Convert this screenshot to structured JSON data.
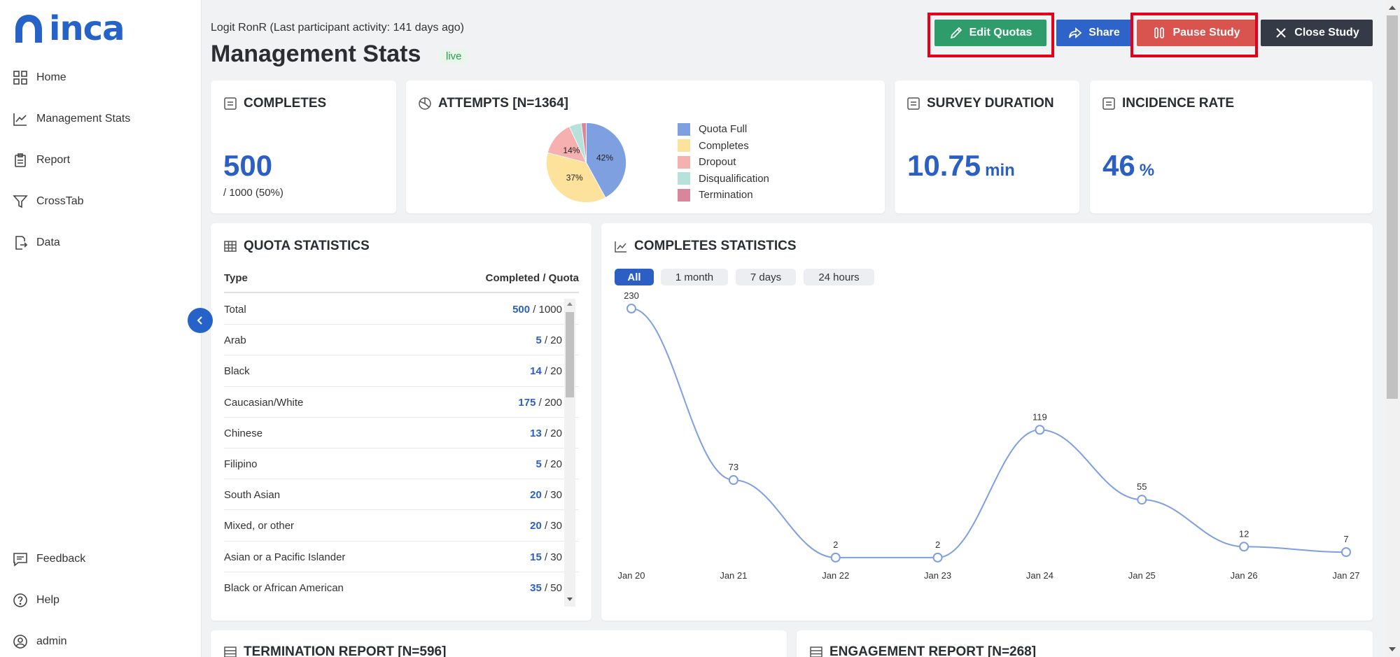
{
  "app": {
    "name": "inca"
  },
  "sidebar": {
    "items": [
      {
        "label": "Home",
        "icon": "grid-icon"
      },
      {
        "label": "Management Stats",
        "icon": "chart-line-icon"
      },
      {
        "label": "Report",
        "icon": "clipboard-icon"
      },
      {
        "label": "CrossTab",
        "icon": "filter-icon"
      },
      {
        "label": "Data",
        "icon": "file-export-icon"
      }
    ],
    "bottom_items": [
      {
        "label": "Feedback",
        "icon": "feedback-icon"
      },
      {
        "label": "Help",
        "icon": "help-icon"
      },
      {
        "label": "admin",
        "icon": "user-icon"
      }
    ]
  },
  "header": {
    "activity": "Logit RonR (Last participant activity: 141 days ago)",
    "title": "Management Stats",
    "status": "live"
  },
  "toolbar": {
    "edit_label": "Edit Quotas",
    "share_label": "Share",
    "pause_label": "Pause Study",
    "close_label": "Close Study"
  },
  "completes": {
    "title": "COMPLETES",
    "value": "500",
    "sub": "/ 1000 (50%)"
  },
  "attempts": {
    "title": "ATTEMPTS [N=1364]",
    "chart_data": {
      "type": "pie",
      "title": "ATTEMPTS [N=1364]",
      "categories": [
        "Quota Full",
        "Completes",
        "Dropout",
        "Disqualification",
        "Termination"
      ],
      "values": [
        42,
        37,
        14,
        5,
        2
      ],
      "labels": [
        "42%",
        "37%",
        "14%",
        "",
        ""
      ],
      "colors": [
        "#7e9fe0",
        "#fde29c",
        "#f6b0b0",
        "#b7e2dc",
        "#d9869c"
      ]
    }
  },
  "survey_duration": {
    "title": "SURVEY DURATION",
    "value": "10.75",
    "unit": "min"
  },
  "incidence": {
    "title": "INCIDENCE RATE",
    "value": "46",
    "unit": "%"
  },
  "quota": {
    "title": "QUOTA STATISTICS",
    "col_type": "Type",
    "col_value": "Completed / Quota",
    "rows": [
      {
        "type": "Total",
        "completed": "500",
        "quota": "/ 1000"
      },
      {
        "type": "Arab",
        "completed": "5",
        "quota": "/ 20"
      },
      {
        "type": "Black",
        "completed": "14",
        "quota": "/ 20"
      },
      {
        "type": "Caucasian/White",
        "completed": "175",
        "quota": "/ 200"
      },
      {
        "type": "Chinese",
        "completed": "13",
        "quota": "/ 20"
      },
      {
        "type": "Filipino",
        "completed": "5",
        "quota": "/ 20"
      },
      {
        "type": "South Asian",
        "completed": "20",
        "quota": "/ 30"
      },
      {
        "type": "Mixed, or other",
        "completed": "20",
        "quota": "/ 30"
      },
      {
        "type": "Asian or a Pacific Islander",
        "completed": "15",
        "quota": "/ 30"
      },
      {
        "type": "Black or African American",
        "completed": "35",
        "quota": "/ 50"
      }
    ]
  },
  "completes_stats": {
    "title": "COMPLETES STATISTICS",
    "ranges": [
      "All",
      "1 month",
      "7 days",
      "24 hours"
    ],
    "active_range": "All",
    "chart_data": {
      "type": "line",
      "title": "COMPLETES STATISTICS",
      "x": [
        "Jan 20",
        "Jan 21",
        "Jan 22",
        "Jan 23",
        "Jan 24",
        "Jan 25",
        "Jan 26",
        "Jan 27"
      ],
      "values": [
        230,
        73,
        2,
        2,
        119,
        55,
        12,
        7
      ],
      "ylim": [
        0,
        230
      ],
      "color": "#7e9fe0"
    }
  },
  "bottom_cards": {
    "termination": "TERMINATION REPORT [N=596]",
    "engagement": "ENGAGEMENT REPORT [N=268]"
  }
}
